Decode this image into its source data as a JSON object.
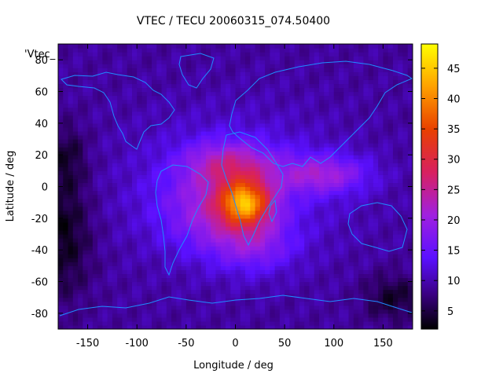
{
  "chart_data": {
    "type": "heatmap",
    "title": "VTEC / TECU 20060315_074.50400",
    "xlabel": "Longitude / deg",
    "ylabel": "Latitude / deg",
    "xlim": [
      -180,
      180
    ],
    "ylim": [
      -90,
      90
    ],
    "x_ticks": [
      -150,
      -100,
      -50,
      0,
      50,
      100,
      150
    ],
    "y_ticks": [
      -80,
      -60,
      -40,
      -20,
      0,
      20,
      40,
      60,
      80
    ],
    "colorbar": {
      "min": 2,
      "max": 49,
      "ticks": [
        5,
        10,
        15,
        20,
        25,
        30,
        35,
        40,
        45
      ],
      "colormap": "black-blue-violet-red-orange-yellow"
    },
    "legend_key": "'Vtec_",
    "peak": {
      "lon": 10,
      "lat": -10,
      "value": 48
    },
    "background_value": 12,
    "colors": {
      "coastline": "#1f8cff",
      "low": "#000000",
      "high": "#ffff00"
    }
  }
}
